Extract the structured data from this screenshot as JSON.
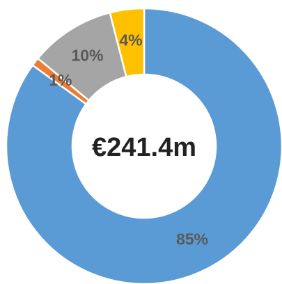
{
  "chart_data": {
    "type": "donut",
    "center_label": "€241.4m",
    "values": [
      85,
      1,
      10,
      4
    ],
    "value_labels": [
      "85%",
      "1%",
      "10%",
      "4%"
    ],
    "colors": [
      "#5b9bd5",
      "#ed7d31",
      "#a5a5a5",
      "#ffc000"
    ]
  }
}
